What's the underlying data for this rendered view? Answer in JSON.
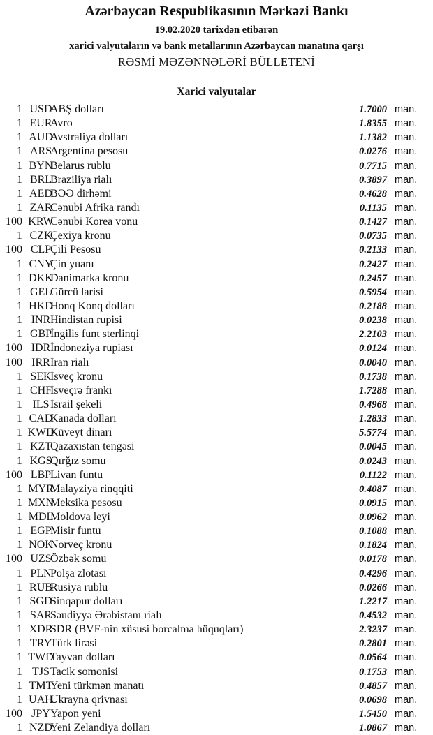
{
  "header": {
    "title": "Azərbaycan Respublikasının Mərkəzi Bankı",
    "date_line": "19.02.2020 tarixdən etibarən",
    "subtitle": "xarici valyutaların və bank metallarının Azərbaycan manatına qarşı",
    "bulletin": "RƏSMİ MƏZƏNNƏLƏRİ BÜLLETENİ"
  },
  "section": {
    "title": "Xarici valyutalar",
    "unit_label": "man.",
    "rows": [
      {
        "amount": "1",
        "code": "USD",
        "name": "ABŞ dolları",
        "rate": "1.7000"
      },
      {
        "amount": "1",
        "code": "EUR",
        "name": "Avro",
        "rate": "1.8355"
      },
      {
        "amount": "1",
        "code": "AUD",
        "name": "Avstraliya dolları",
        "rate": "1.1382"
      },
      {
        "amount": "1",
        "code": "ARS",
        "name": "Argentina pesosu",
        "rate": "0.0276"
      },
      {
        "amount": "1",
        "code": "BYN",
        "name": "Belarus rublu",
        "rate": "0.7715"
      },
      {
        "amount": "1",
        "code": "BRL",
        "name": "Braziliya rialı",
        "rate": "0.3897"
      },
      {
        "amount": "1",
        "code": "AED",
        "name": "BƏƏ dirhəmi",
        "rate": "0.4628"
      },
      {
        "amount": "1",
        "code": "ZAR",
        "name": "Cənubi Afrika randı",
        "rate": "0.1135"
      },
      {
        "amount": "100",
        "code": "KRW",
        "name": "Cənubi Korea vonu",
        "rate": "0.1427"
      },
      {
        "amount": "1",
        "code": "CZK",
        "name": "Çexiya kronu",
        "rate": "0.0735"
      },
      {
        "amount": "100",
        "code": "CLP",
        "name": "Çili Pesosu",
        "rate": "0.2133"
      },
      {
        "amount": "1",
        "code": "CNY",
        "name": "Çin yuanı",
        "rate": "0.2427"
      },
      {
        "amount": "1",
        "code": "DKK",
        "name": "Danimarka kronu",
        "rate": "0.2457"
      },
      {
        "amount": "1",
        "code": "GEL",
        "name": "Gürcü larisi",
        "rate": "0.5954"
      },
      {
        "amount": "1",
        "code": "HKD",
        "name": "Honq Konq dolları",
        "rate": "0.2188"
      },
      {
        "amount": "1",
        "code": "INR",
        "name": "Hindistan rupisi",
        "rate": "0.0238"
      },
      {
        "amount": "1",
        "code": "GBP",
        "name": "İngilis funt sterlinqi",
        "rate": "2.2103"
      },
      {
        "amount": "100",
        "code": "IDR",
        "name": "İndoneziya rupiası",
        "rate": "0.0124"
      },
      {
        "amount": "100",
        "code": "IRR",
        "name": "İran rialı",
        "rate": "0.0040"
      },
      {
        "amount": "1",
        "code": "SEK",
        "name": "İsveç kronu",
        "rate": "0.1738"
      },
      {
        "amount": "1",
        "code": "CHF",
        "name": "İsveçrə frankı",
        "rate": "1.7288"
      },
      {
        "amount": "1",
        "code": "ILS",
        "name": "İsrail şekeli",
        "rate": "0.4968"
      },
      {
        "amount": "1",
        "code": "CAD",
        "name": "Kanada dolları",
        "rate": "1.2833"
      },
      {
        "amount": "1",
        "code": "KWD",
        "name": "Küveyt dinarı",
        "rate": "5.5774"
      },
      {
        "amount": "1",
        "code": "KZT",
        "name": "Qazaxıstan tengəsi",
        "rate": "0.0045"
      },
      {
        "amount": "1",
        "code": "KGS",
        "name": "Qırğız somu",
        "rate": "0.0243"
      },
      {
        "amount": "100",
        "code": "LBP",
        "name": "Livan funtu",
        "rate": "0.1122"
      },
      {
        "amount": "1",
        "code": "MYR",
        "name": "Malayziya rinqqiti",
        "rate": "0.4087"
      },
      {
        "amount": "1",
        "code": "MXN",
        "name": "Meksika pesosu",
        "rate": "0.0915"
      },
      {
        "amount": "1",
        "code": "MDL",
        "name": "Moldova leyi",
        "rate": "0.0962"
      },
      {
        "amount": "1",
        "code": "EGP",
        "name": "Misir funtu",
        "rate": "0.1088"
      },
      {
        "amount": "1",
        "code": "NOK",
        "name": "Norveç kronu",
        "rate": "0.1824"
      },
      {
        "amount": "100",
        "code": "UZS",
        "name": "Özbək somu",
        "rate": "0.0178"
      },
      {
        "amount": "1",
        "code": "PLN",
        "name": "Polşa zlotası",
        "rate": "0.4296"
      },
      {
        "amount": "1",
        "code": "RUB",
        "name": "Rusiya rublu",
        "rate": "0.0266"
      },
      {
        "amount": "1",
        "code": "SGD",
        "name": "Sinqapur dolları",
        "rate": "1.2217"
      },
      {
        "amount": "1",
        "code": "SAR",
        "name": "Səudiyyə Ərəbistanı rialı",
        "rate": "0.4532"
      },
      {
        "amount": "1",
        "code": "XDR",
        "name": "SDR (BVF-nin xüsusi borcalma hüquqları)",
        "rate": "2.3237"
      },
      {
        "amount": "1",
        "code": "TRY",
        "name": "Türk lirəsi",
        "rate": "0.2801"
      },
      {
        "amount": "1",
        "code": "TWD",
        "name": "Tayvan dolları",
        "rate": "0.0564"
      },
      {
        "amount": "1",
        "code": "TJS",
        "name": "Tacik somonisi",
        "rate": "0.1753"
      },
      {
        "amount": "1",
        "code": "TMT",
        "name": "Yeni türkmən manatı",
        "rate": "0.4857"
      },
      {
        "amount": "1",
        "code": "UAH",
        "name": "Ukrayna qrivnası",
        "rate": "0.0698"
      },
      {
        "amount": "100",
        "code": "JPY",
        "name": "Yapon yeni",
        "rate": "1.5450"
      },
      {
        "amount": "1",
        "code": "NZD",
        "name": "Yeni Zelandiya dolları",
        "rate": "1.0867"
      }
    ]
  }
}
